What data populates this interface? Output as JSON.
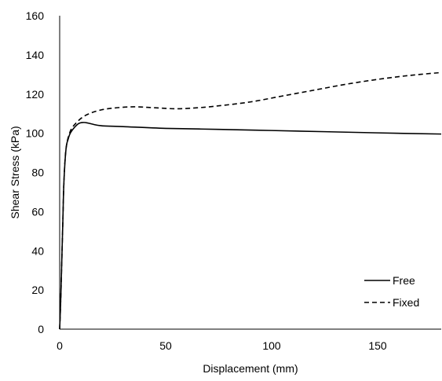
{
  "chart_data": {
    "type": "line",
    "title": "",
    "xlabel": "Displacement (mm)",
    "ylabel": "Shear Stress (kPa)",
    "xlim": [
      0,
      180
    ],
    "ylim": [
      0,
      160
    ],
    "x_ticks": [
      0,
      50,
      100,
      150
    ],
    "y_ticks": [
      0,
      20,
      40,
      60,
      80,
      100,
      120,
      140,
      160
    ],
    "grid": false,
    "legend_position": "bottom-right",
    "series": [
      {
        "name": "Free",
        "style": "solid",
        "color": "#000000",
        "points": [
          [
            0,
            0
          ],
          [
            0.5,
            15
          ],
          [
            1,
            35
          ],
          [
            1.5,
            55
          ],
          [
            2,
            75
          ],
          [
            3,
            92
          ],
          [
            4,
            97
          ],
          [
            5,
            100
          ],
          [
            7,
            103
          ],
          [
            9,
            105
          ],
          [
            11,
            105.5
          ],
          [
            13,
            105.3
          ],
          [
            16,
            104.5
          ],
          [
            20,
            103.8
          ],
          [
            30,
            103.4
          ],
          [
            50,
            102.5
          ],
          [
            75,
            102
          ],
          [
            100,
            101.4
          ],
          [
            125,
            100.8
          ],
          [
            150,
            100.2
          ],
          [
            180,
            99.6
          ]
        ]
      },
      {
        "name": "Fixed",
        "style": "dashed",
        "color": "#000000",
        "points": [
          [
            0,
            0
          ],
          [
            0.5,
            15
          ],
          [
            1,
            35
          ],
          [
            1.5,
            55
          ],
          [
            2,
            75
          ],
          [
            3,
            92
          ],
          [
            5,
            101
          ],
          [
            8,
            105.5
          ],
          [
            12,
            109
          ],
          [
            18,
            111.5
          ],
          [
            25,
            112.8
          ],
          [
            35,
            113.5
          ],
          [
            45,
            113
          ],
          [
            55,
            112.5
          ],
          [
            65,
            113
          ],
          [
            75,
            114
          ],
          [
            90,
            116
          ],
          [
            105,
            119
          ],
          [
            120,
            122
          ],
          [
            135,
            125
          ],
          [
            150,
            127.5
          ],
          [
            165,
            129.5
          ],
          [
            180,
            131
          ]
        ]
      }
    ]
  }
}
